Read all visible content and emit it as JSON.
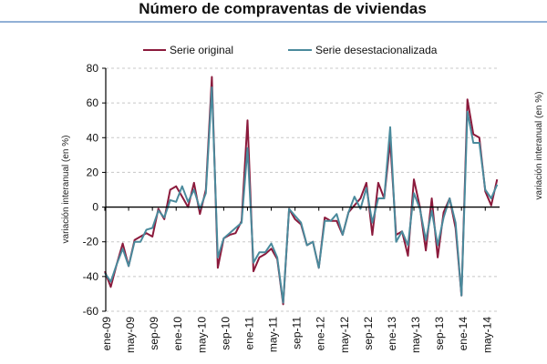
{
  "chart_data": {
    "type": "line",
    "title": "Número de compraventas de viviendas",
    "xlabel": "",
    "ylabel": "variación interanual (en %)",
    "ylabel_right": "variación interanual (en %)",
    "ylim": [
      -60,
      80
    ],
    "yticks": [
      80,
      60,
      40,
      20,
      0,
      -20,
      -40,
      -60
    ],
    "grid": "horizontal dashed",
    "legend_position": "top-center",
    "x_tick_labels": [
      "ene-09",
      "may-09",
      "sep-09",
      "ene-10",
      "may-10",
      "sep-10",
      "ene-11",
      "may-11",
      "sep-11",
      "ene-12",
      "may-12",
      "sep-12",
      "ene-13",
      "may-13",
      "sep-13",
      "ene-14",
      "may-14"
    ],
    "x_tick_interval_months": 4,
    "x_start": "ene-09",
    "x_end": "jul-14",
    "series": [
      {
        "name": "Serie original",
        "color": "#8b1a3c",
        "values": [
          -37,
          -46,
          -33,
          -21,
          -34,
          -19,
          -17,
          -15,
          -17,
          -1,
          -7,
          10,
          12,
          6,
          0,
          14,
          -4,
          10,
          75,
          -35,
          -18,
          -16,
          -15,
          -8,
          50,
          -37,
          -29,
          -27,
          -24,
          -30,
          -56,
          -1,
          -7,
          -10,
          -22,
          -20,
          -35,
          -6,
          -8,
          -8,
          -16,
          -3,
          1,
          5,
          14,
          -16,
          14,
          5,
          38,
          -16,
          -14,
          -28,
          16,
          0,
          -25,
          5,
          -29,
          -3,
          5,
          -12,
          -51,
          62,
          42,
          40,
          9,
          1,
          16
        ]
      },
      {
        "name": "Serie desestacionalizada",
        "color": "#4a8a9c",
        "values": [
          -38,
          -43,
          -33,
          -24,
          -34,
          -20,
          -20,
          -13,
          -12,
          -2,
          -6,
          4,
          3,
          12,
          3,
          10,
          -1,
          8,
          69,
          -29,
          -18,
          -15,
          -12,
          -9,
          34,
          -32,
          -26,
          -26,
          -21,
          -29,
          -55,
          -1,
          -5,
          -9,
          -22,
          -20,
          -35,
          -8,
          -8,
          -4,
          -16,
          -3,
          6,
          -1,
          11,
          -9,
          5,
          5,
          46,
          -20,
          -14,
          -22,
          8,
          -1,
          -19,
          -2,
          -22,
          -6,
          5,
          -9,
          -51,
          55,
          37,
          37,
          10,
          5,
          13
        ]
      }
    ]
  },
  "colors": {
    "title_rule": "#4f81bd",
    "axis": "#000000",
    "grid": "#c8c8c8"
  }
}
